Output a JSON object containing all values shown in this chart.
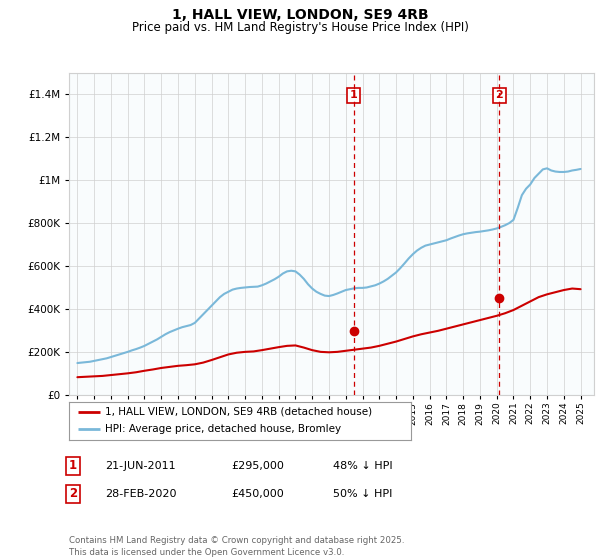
{
  "title": "1, HALL VIEW, LONDON, SE9 4RB",
  "subtitle": "Price paid vs. HM Land Registry's House Price Index (HPI)",
  "hpi_label": "HPI: Average price, detached house, Bromley",
  "property_label": "1, HALL VIEW, LONDON, SE9 4RB (detached house)",
  "footnote": "Contains HM Land Registry data © Crown copyright and database right 2025.\nThis data is licensed under the Open Government Licence v3.0.",
  "transaction1_date": "21-JUN-2011",
  "transaction1_price": "£295,000",
  "transaction1_note": "48% ↓ HPI",
  "transaction2_date": "28-FEB-2020",
  "transaction2_price": "£450,000",
  "transaction2_note": "50% ↓ HPI",
  "hpi_color": "#7ab8d9",
  "property_color": "#cc0000",
  "vline_color": "#cc0000",
  "background_color": "#ffffff",
  "grid_color": "#d0d0d0",
  "ylim": [
    0,
    1500000
  ],
  "yticks": [
    0,
    200000,
    400000,
    600000,
    800000,
    1000000,
    1200000,
    1400000
  ],
  "xlim_start": 1994.5,
  "xlim_end": 2025.8,
  "vline1_x": 2011.47,
  "vline2_x": 2020.16,
  "hpi_x": [
    1995.0,
    1995.25,
    1995.5,
    1995.75,
    1996.0,
    1996.25,
    1996.5,
    1996.75,
    1997.0,
    1997.25,
    1997.5,
    1997.75,
    1998.0,
    1998.25,
    1998.5,
    1998.75,
    1999.0,
    1999.25,
    1999.5,
    1999.75,
    2000.0,
    2000.25,
    2000.5,
    2000.75,
    2001.0,
    2001.25,
    2001.5,
    2001.75,
    2002.0,
    2002.25,
    2002.5,
    2002.75,
    2003.0,
    2003.25,
    2003.5,
    2003.75,
    2004.0,
    2004.25,
    2004.5,
    2004.75,
    2005.0,
    2005.25,
    2005.5,
    2005.75,
    2006.0,
    2006.25,
    2006.5,
    2006.75,
    2007.0,
    2007.25,
    2007.5,
    2007.75,
    2008.0,
    2008.25,
    2008.5,
    2008.75,
    2009.0,
    2009.25,
    2009.5,
    2009.75,
    2010.0,
    2010.25,
    2010.5,
    2010.75,
    2011.0,
    2011.25,
    2011.5,
    2011.75,
    2012.0,
    2012.25,
    2012.5,
    2012.75,
    2013.0,
    2013.25,
    2013.5,
    2013.75,
    2014.0,
    2014.25,
    2014.5,
    2014.75,
    2015.0,
    2015.25,
    2015.5,
    2015.75,
    2016.0,
    2016.25,
    2016.5,
    2016.75,
    2017.0,
    2017.25,
    2017.5,
    2017.75,
    2018.0,
    2018.25,
    2018.5,
    2018.75,
    2019.0,
    2019.25,
    2019.5,
    2019.75,
    2020.0,
    2020.25,
    2020.5,
    2020.75,
    2021.0,
    2021.25,
    2021.5,
    2021.75,
    2022.0,
    2022.25,
    2022.5,
    2022.75,
    2023.0,
    2023.25,
    2023.5,
    2023.75,
    2024.0,
    2024.25,
    2024.5,
    2024.75,
    2025.0
  ],
  "hpi_y": [
    148000,
    150000,
    152000,
    154000,
    158000,
    162000,
    166000,
    170000,
    176000,
    182000,
    188000,
    194000,
    200000,
    207000,
    213000,
    220000,
    228000,
    238000,
    248000,
    258000,
    270000,
    282000,
    292000,
    300000,
    308000,
    315000,
    320000,
    325000,
    335000,
    355000,
    375000,
    395000,
    415000,
    435000,
    455000,
    470000,
    480000,
    490000,
    495000,
    498000,
    500000,
    502000,
    503000,
    504000,
    510000,
    518000,
    528000,
    538000,
    550000,
    565000,
    575000,
    578000,
    575000,
    560000,
    540000,
    515000,
    495000,
    480000,
    470000,
    462000,
    460000,
    465000,
    472000,
    480000,
    488000,
    492000,
    496000,
    498000,
    498000,
    500000,
    505000,
    510000,
    518000,
    528000,
    540000,
    555000,
    570000,
    590000,
    612000,
    635000,
    655000,
    672000,
    685000,
    695000,
    700000,
    705000,
    710000,
    715000,
    720000,
    728000,
    735000,
    742000,
    748000,
    752000,
    755000,
    758000,
    760000,
    763000,
    766000,
    770000,
    775000,
    782000,
    790000,
    800000,
    815000,
    870000,
    930000,
    960000,
    980000,
    1010000,
    1030000,
    1050000,
    1055000,
    1045000,
    1040000,
    1038000,
    1038000,
    1040000,
    1045000,
    1048000,
    1052000
  ],
  "property_x": [
    1995.0,
    1995.5,
    1996.0,
    1996.5,
    1997.0,
    1997.5,
    1998.0,
    1998.5,
    1999.0,
    1999.5,
    2000.0,
    2000.5,
    2001.0,
    2001.5,
    2002.0,
    2002.5,
    2003.0,
    2003.5,
    2004.0,
    2004.5,
    2005.0,
    2005.5,
    2006.0,
    2006.5,
    2007.0,
    2007.5,
    2008.0,
    2008.5,
    2009.0,
    2009.5,
    2010.0,
    2010.5,
    2011.0,
    2011.5,
    2012.0,
    2012.5,
    2013.0,
    2013.5,
    2014.0,
    2014.5,
    2015.0,
    2015.5,
    2016.0,
    2016.5,
    2017.0,
    2017.5,
    2018.0,
    2018.5,
    2019.0,
    2019.5,
    2020.0,
    2020.5,
    2021.0,
    2021.5,
    2022.0,
    2022.5,
    2023.0,
    2023.5,
    2024.0,
    2024.5,
    2025.0
  ],
  "property_y": [
    82000,
    84000,
    86000,
    88000,
    92000,
    96000,
    100000,
    105000,
    112000,
    118000,
    125000,
    130000,
    135000,
    138000,
    142000,
    150000,
    162000,
    175000,
    188000,
    196000,
    200000,
    202000,
    208000,
    215000,
    222000,
    228000,
    230000,
    220000,
    208000,
    200000,
    198000,
    200000,
    205000,
    210000,
    215000,
    220000,
    228000,
    238000,
    248000,
    260000,
    272000,
    282000,
    290000,
    298000,
    308000,
    318000,
    328000,
    338000,
    348000,
    358000,
    368000,
    380000,
    395000,
    415000,
    435000,
    455000,
    468000,
    478000,
    488000,
    495000,
    492000
  ],
  "dot1_x": 2011.47,
  "dot1_y": 295000,
  "dot2_x": 2020.16,
  "dot2_y": 450000
}
